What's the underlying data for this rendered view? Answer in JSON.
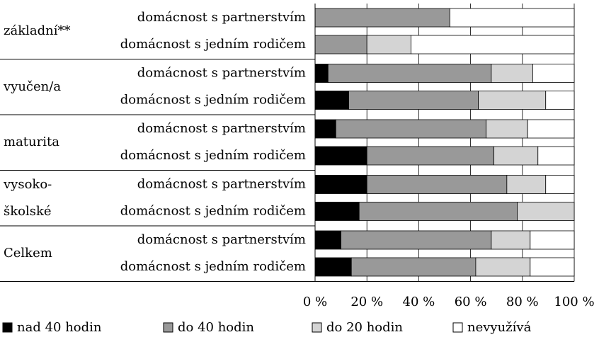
{
  "chart_data": {
    "type": "stacked-bar-horizontal",
    "groups": [
      "základní**",
      "vyučen/a",
      "maturita",
      "vysoko-\nškolské",
      "Celkem"
    ],
    "categories": [
      "domácnost s partnerstvím",
      "domácnost s jedním rodičem",
      "domácnost s partnerstvím",
      "domácnost s jedním rodičem",
      "domácnost s partnerstvím",
      "domácnost s jedním rodičem",
      "domácnost s partnerstvím",
      "domácnost s jedním rodičem",
      "domácnost s partnerstvím",
      "domácnost s jedním rodičem"
    ],
    "series": [
      {
        "name": "nad 40 hodin",
        "color": "#000000",
        "values": [
          0,
          0,
          5,
          13,
          8,
          20,
          20,
          17,
          10,
          14
        ]
      },
      {
        "name": "do 40 hodin",
        "color": "#999999",
        "values": [
          52,
          20,
          63,
          50,
          58,
          49,
          54,
          61,
          58,
          48
        ]
      },
      {
        "name": "do 20 hodin",
        "color": "#d4d4d4",
        "values": [
          0,
          17,
          16,
          26,
          16,
          17,
          15,
          22,
          15,
          21
        ]
      },
      {
        "name": "nevyužívá",
        "color": "#ffffff",
        "values": [
          48,
          63,
          16,
          11,
          18,
          14,
          11,
          0,
          17,
          17
        ]
      }
    ],
    "xlim": [
      0,
      100
    ],
    "xticks": [
      {
        "value": 0,
        "label": "0 %"
      },
      {
        "value": 20,
        "label": "20 %"
      },
      {
        "value": 40,
        "label": "40 %"
      },
      {
        "value": 60,
        "label": "60 %"
      },
      {
        "value": 80,
        "label": "80 %"
      },
      {
        "value": 100,
        "label": "100 %"
      }
    ],
    "grid": true,
    "legend": "bottom"
  }
}
